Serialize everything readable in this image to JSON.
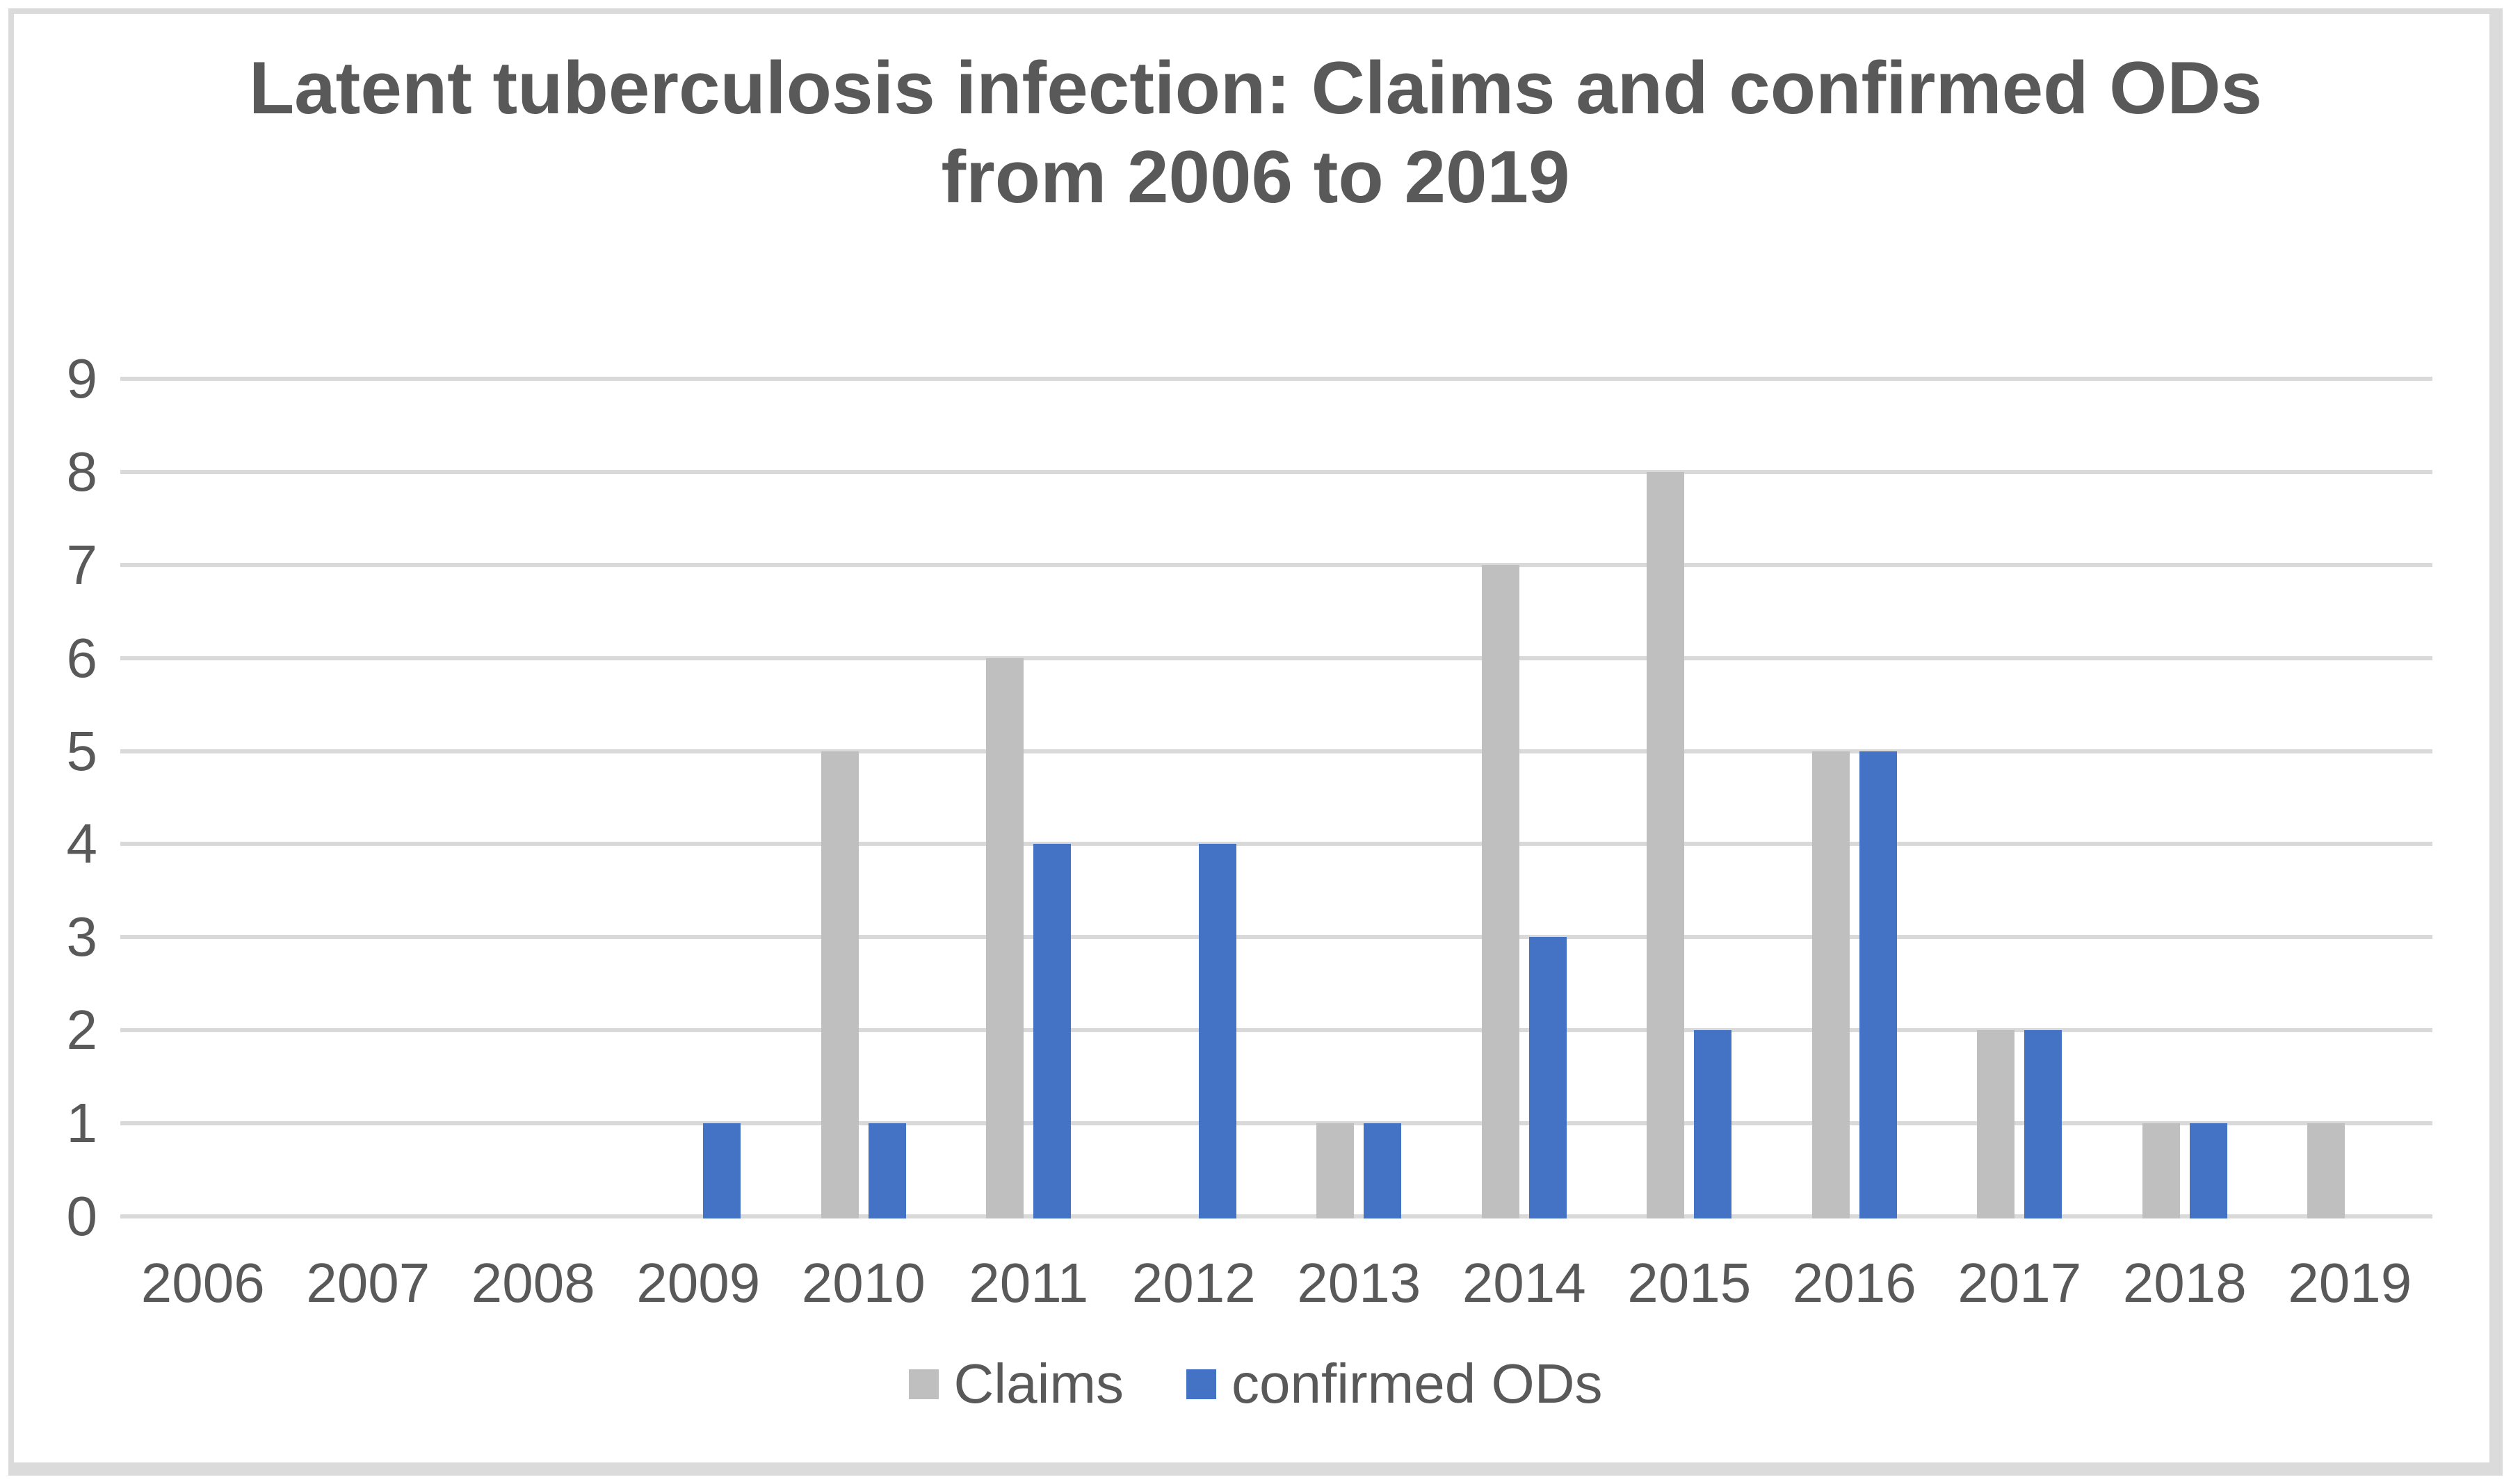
{
  "header": {
    "title_line1": "Latent tuberculosis infection: Claims and confirmed ODs",
    "title_line2": "from 2006 to 2019"
  },
  "chart_data": {
    "type": "bar",
    "title": "Latent tuberculosis infection: Claims and confirmed ODs from 2006 to 2019",
    "categories": [
      "2006",
      "2007",
      "2008",
      "2009",
      "2010",
      "2011",
      "2012",
      "2013",
      "2014",
      "2015",
      "2016",
      "2017",
      "2018",
      "2019"
    ],
    "series": [
      {
        "name": "Claims",
        "color": "#BFBFBF",
        "values": [
          0,
          0,
          0,
          0,
          5,
          6,
          0,
          1,
          7,
          8,
          5,
          2,
          1,
          1
        ]
      },
      {
        "name": "confirmed ODs",
        "color": "#4472C4",
        "values": [
          0,
          0,
          0,
          1,
          1,
          4,
          4,
          1,
          3,
          2,
          5,
          2,
          1,
          0
        ]
      }
    ],
    "xlabel": "",
    "ylabel": "",
    "ylim": [
      0,
      9
    ],
    "y_ticks": [
      0,
      1,
      2,
      3,
      4,
      5,
      6,
      7,
      8,
      9
    ],
    "grid": "horizontal",
    "legend_position": "bottom",
    "colors": {
      "grid": "#D9D9D9",
      "text": "#595959",
      "frame_border": "#DBDBDB",
      "background": "#FFFFFF"
    }
  }
}
